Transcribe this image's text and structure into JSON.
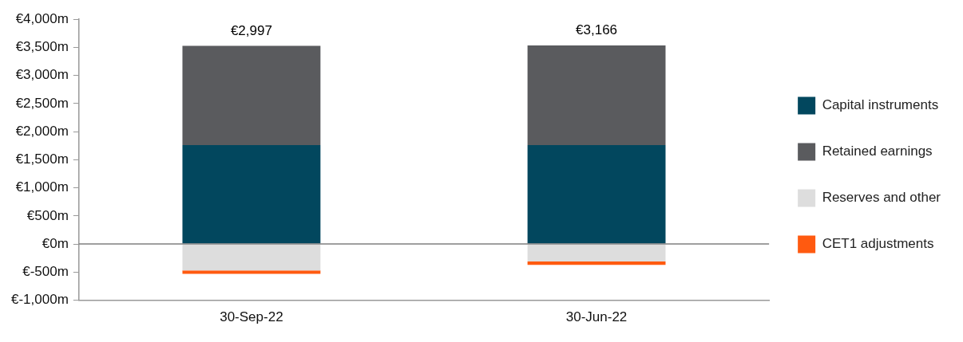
{
  "chart_data": {
    "type": "bar",
    "stacked": true,
    "categories": [
      "30-Sep-22",
      "30-Jun-22"
    ],
    "series": [
      {
        "name": "Capital instruments",
        "color": "#02475e",
        "values": [
          1760,
          1760
        ]
      },
      {
        "name": "Retained earnings",
        "color": "#5a5b5e",
        "values": [
          1767,
          1776
        ]
      },
      {
        "name": "Reserves and other",
        "color": "#dddddd",
        "values": [
          -470,
          -310
        ]
      },
      {
        "name": "CET1 adjustments",
        "color": "#ff5a10",
        "values": [
          -60,
          -60
        ]
      }
    ],
    "totals": [
      "€2,997",
      "€3,166"
    ],
    "ylim": [
      -1000,
      4000
    ],
    "yticks": [
      {
        "value": -1000,
        "label": "€-1,000m"
      },
      {
        "value": -500,
        "label": "€-500m"
      },
      {
        "value": 0,
        "label": "€0m"
      },
      {
        "value": 500,
        "label": "€500m"
      },
      {
        "value": 1000,
        "label": "€1,000m"
      },
      {
        "value": 1500,
        "label": "€1,500m"
      },
      {
        "value": 2000,
        "label": "€2,000m"
      },
      {
        "value": 2500,
        "label": "€2,500m"
      },
      {
        "value": 3000,
        "label": "€3,000m"
      },
      {
        "value": 3500,
        "label": "€3,500m"
      },
      {
        "value": 4000,
        "label": "€4,000m"
      }
    ],
    "grid": false,
    "ref_lines": [
      {
        "axis": "y",
        "value": 0,
        "color": "#7f7f7f"
      }
    ],
    "legend": "right"
  }
}
